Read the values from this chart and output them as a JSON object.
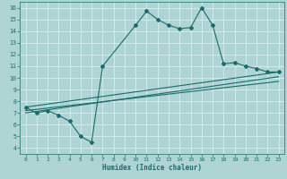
{
  "xlabel": "Humidex (Indice chaleur)",
  "xlim": [
    -0.5,
    23.5
  ],
  "ylim": [
    3.5,
    16.5
  ],
  "xticks": [
    0,
    1,
    2,
    3,
    4,
    5,
    6,
    7,
    8,
    9,
    10,
    11,
    12,
    13,
    14,
    15,
    16,
    17,
    18,
    19,
    20,
    21,
    22,
    23
  ],
  "yticks": [
    4,
    5,
    6,
    7,
    8,
    9,
    10,
    11,
    12,
    13,
    14,
    15,
    16
  ],
  "bg_color": "#aed4d4",
  "line_color": "#1a6b6b",
  "grid_color": "#d8eeee",
  "series1_x": [
    0,
    1,
    2,
    3,
    4,
    5,
    6,
    7,
    10,
    11,
    12,
    13,
    14,
    15,
    16,
    17,
    18,
    19,
    20,
    21,
    22,
    23
  ],
  "series1_y": [
    7.5,
    7.0,
    7.2,
    6.8,
    6.3,
    5.0,
    4.5,
    11.0,
    14.5,
    15.7,
    15.0,
    14.5,
    14.2,
    14.3,
    16.0,
    14.5,
    11.2,
    11.3,
    11.0,
    10.8,
    10.5,
    10.5
  ],
  "series2_x": [
    0,
    23
  ],
  "series2_y": [
    7.5,
    10.5
  ],
  "series3_x": [
    0,
    23
  ],
  "series3_y": [
    7.2,
    9.7
  ],
  "series4_x": [
    0,
    23
  ],
  "series4_y": [
    7.0,
    10.1
  ]
}
